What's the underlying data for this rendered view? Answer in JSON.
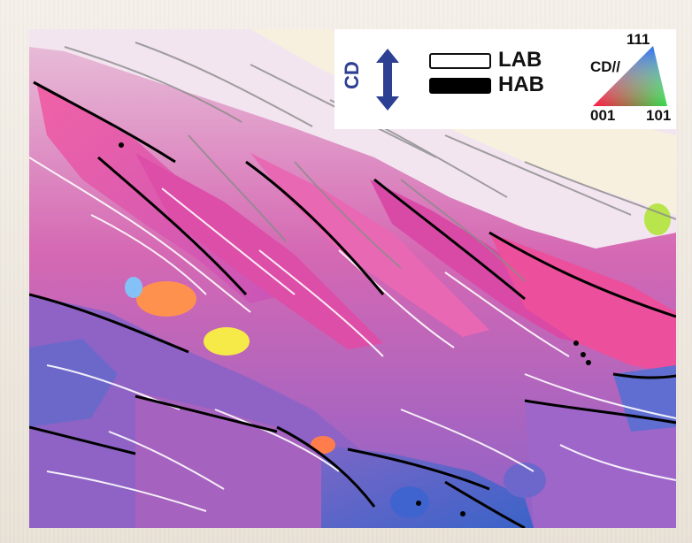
{
  "map": {
    "direction_label": "CD",
    "boundary_labels": {
      "low_angle": "LAB",
      "high_angle": "HAB"
    },
    "ipf": {
      "title": "CD//",
      "corner_top": "111",
      "corner_left": "001",
      "corner_right": "101",
      "colors": [
        "#ff1744",
        "#2f6bff",
        "#32d84b"
      ]
    },
    "palette": {
      "magenta": "#dc4ca8",
      "pink": "#f05aa7",
      "violet": "#9266c7",
      "blue": "#4f6fc8",
      "cream": "#f6edd5",
      "yellow": "#f7ea45",
      "orange": "#ff8a4b"
    }
  }
}
